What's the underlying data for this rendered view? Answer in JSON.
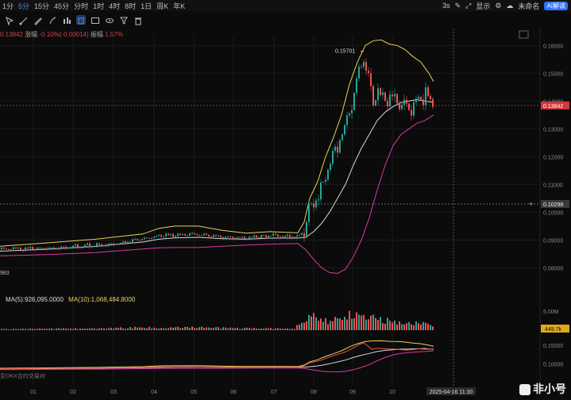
{
  "toolbar": {
    "timeframes": [
      "1分",
      "5分",
      "15分",
      "45分",
      "分时",
      "1时",
      "4时",
      "8时",
      "1日",
      "周K",
      "年K"
    ],
    "active_timeframe": "5分",
    "right_items": {
      "interval": "3s",
      "display": "显示",
      "unnamed": "未命名",
      "ai": "AI解读"
    }
  },
  "info_line": {
    "price": "0.13842",
    "change_label": "涨幅",
    "change": "-0.10%(-0.00014)",
    "amp_label": "振幅",
    "amp": "1.57%"
  },
  "ma_legend": {
    "ma5": "MA(5):926,095.0000",
    "ma10": "MA(10):1,068,484.8000"
  },
  "bottom_note": "至OKX合约交易对",
  "left_edge_label": "983",
  "peak_label": "0.15701",
  "price_tags": {
    "last": "0.13842",
    "cross": "0.10298",
    "volume": "449.7k"
  },
  "date_tag": "2025-04-16 11:30",
  "logo_text": "非小号",
  "colors": {
    "up": "#26a69a",
    "down": "#ef5350",
    "upper_band": "#e6d35a",
    "mid_band": "#d8d8d8",
    "lower_band": "#d63aa6",
    "last_tag": "#d03a3a",
    "vol_tag": "#e0a81c"
  },
  "chart_data": {
    "type": "candlestick",
    "price_axis": {
      "ticks": [
        0.16,
        0.15,
        0.14,
        0.13,
        0.12,
        0.11,
        0.1,
        0.09,
        0.08
      ],
      "range": [
        0.075,
        0.1635
      ]
    },
    "x_ticks": [
      "01",
      "02",
      "03",
      "04",
      "05",
      "06",
      "07",
      "08",
      "09",
      "10"
    ],
    "volume_axis": {
      "ticks": [
        "5.00M"
      ]
    },
    "indicator_axis": {
      "ticks": [
        "0.15000",
        "0.10000"
      ],
      "range": [
        0.075,
        0.165
      ]
    },
    "price_series": [
      [
        0,
        0.0866
      ],
      [
        30,
        0.0868
      ],
      [
        60,
        0.0872
      ],
      [
        90,
        0.0878
      ],
      [
        120,
        0.0883
      ],
      [
        150,
        0.0889
      ],
      [
        180,
        0.0905
      ],
      [
        200,
        0.0915
      ],
      [
        220,
        0.0917
      ],
      [
        240,
        0.092
      ],
      [
        260,
        0.0916
      ],
      [
        280,
        0.091
      ],
      [
        300,
        0.0907
      ],
      [
        320,
        0.091
      ],
      [
        340,
        0.0917
      ],
      [
        360,
        0.0913
      ],
      [
        375,
        0.0912
      ],
      [
        383,
        0.0945
      ],
      [
        388,
        0.101
      ],
      [
        395,
        0.1045
      ],
      [
        405,
        0.11
      ],
      [
        415,
        0.1185
      ],
      [
        425,
        0.125
      ],
      [
        435,
        0.132
      ],
      [
        445,
        0.143
      ],
      [
        452,
        0.152
      ],
      [
        458,
        0.156
      ],
      [
        462,
        0.15
      ],
      [
        468,
        0.139
      ],
      [
        475,
        0.142
      ],
      [
        482,
        0.1405
      ],
      [
        490,
        0.14
      ],
      [
        498,
        0.1395
      ],
      [
        505,
        0.138
      ],
      [
        512,
        0.137
      ],
      [
        518,
        0.1375
      ],
      [
        525,
        0.14
      ],
      [
        530,
        0.141
      ],
      [
        535,
        0.142
      ],
      [
        540,
        0.14
      ],
      [
        546,
        0.1384
      ]
    ],
    "upper_band": [
      [
        0,
        0.0878
      ],
      [
        60,
        0.089
      ],
      [
        120,
        0.0903
      ],
      [
        180,
        0.0922
      ],
      [
        200,
        0.0942
      ],
      [
        220,
        0.095
      ],
      [
        250,
        0.095
      ],
      [
        280,
        0.0935
      ],
      [
        310,
        0.0925
      ],
      [
        340,
        0.093
      ],
      [
        375,
        0.0926
      ],
      [
        383,
        0.0965
      ],
      [
        390,
        0.105
      ],
      [
        400,
        0.111
      ],
      [
        410,
        0.12
      ],
      [
        420,
        0.127
      ],
      [
        430,
        0.135
      ],
      [
        440,
        0.146
      ],
      [
        450,
        0.154
      ],
      [
        460,
        0.16
      ],
      [
        470,
        0.1617
      ],
      [
        480,
        0.162
      ],
      [
        490,
        0.1605
      ],
      [
        500,
        0.16
      ],
      [
        510,
        0.1585
      ],
      [
        520,
        0.156
      ],
      [
        530,
        0.154
      ],
      [
        540,
        0.15
      ],
      [
        546,
        0.147
      ]
    ],
    "mid_band": [
      [
        0,
        0.086
      ],
      [
        60,
        0.0867
      ],
      [
        120,
        0.0877
      ],
      [
        180,
        0.0893
      ],
      [
        200,
        0.0903
      ],
      [
        220,
        0.0908
      ],
      [
        250,
        0.091
      ],
      [
        280,
        0.0905
      ],
      [
        310,
        0.0903
      ],
      [
        340,
        0.0907
      ],
      [
        375,
        0.0907
      ],
      [
        385,
        0.091
      ],
      [
        395,
        0.093
      ],
      [
        405,
        0.096
      ],
      [
        415,
        0.1
      ],
      [
        425,
        0.105
      ],
      [
        435,
        0.11
      ],
      [
        445,
        0.117
      ],
      [
        455,
        0.123
      ],
      [
        465,
        0.128
      ],
      [
        475,
        0.133
      ],
      [
        485,
        0.136
      ],
      [
        495,
        0.138
      ],
      [
        505,
        0.1395
      ],
      [
        515,
        0.14
      ],
      [
        525,
        0.1405
      ],
      [
        535,
        0.14
      ],
      [
        546,
        0.1395
      ]
    ],
    "lower_band": [
      [
        0,
        0.0843
      ],
      [
        60,
        0.0848
      ],
      [
        120,
        0.0855
      ],
      [
        180,
        0.0868
      ],
      [
        200,
        0.0872
      ],
      [
        220,
        0.0873
      ],
      [
        250,
        0.0873
      ],
      [
        280,
        0.0878
      ],
      [
        310,
        0.0882
      ],
      [
        340,
        0.0885
      ],
      [
        375,
        0.0888
      ],
      [
        385,
        0.0865
      ],
      [
        395,
        0.083
      ],
      [
        405,
        0.08
      ],
      [
        415,
        0.0783
      ],
      [
        425,
        0.078
      ],
      [
        435,
        0.0795
      ],
      [
        445,
        0.084
      ],
      [
        455,
        0.09
      ],
      [
        465,
        0.098
      ],
      [
        475,
        0.108
      ],
      [
        485,
        0.117
      ],
      [
        495,
        0.124
      ],
      [
        505,
        0.128
      ],
      [
        515,
        0.13
      ],
      [
        525,
        0.132
      ],
      [
        535,
        0.133
      ],
      [
        546,
        0.135
      ]
    ],
    "volume_profile": [
      [
        0,
        0.04
      ],
      [
        100,
        0.06
      ],
      [
        170,
        0.09
      ],
      [
        250,
        0.1
      ],
      [
        300,
        0.07
      ],
      [
        370,
        0.05
      ],
      [
        385,
        0.55
      ],
      [
        395,
        0.45
      ],
      [
        420,
        0.35
      ],
      [
        445,
        0.6
      ],
      [
        460,
        0.5
      ],
      [
        480,
        0.35
      ],
      [
        500,
        0.3
      ],
      [
        520,
        0.25
      ],
      [
        546,
        0.18
      ]
    ],
    "events": [
      {
        "label": "0.15701",
        "x": 458,
        "y": 0.15701
      }
    ]
  }
}
